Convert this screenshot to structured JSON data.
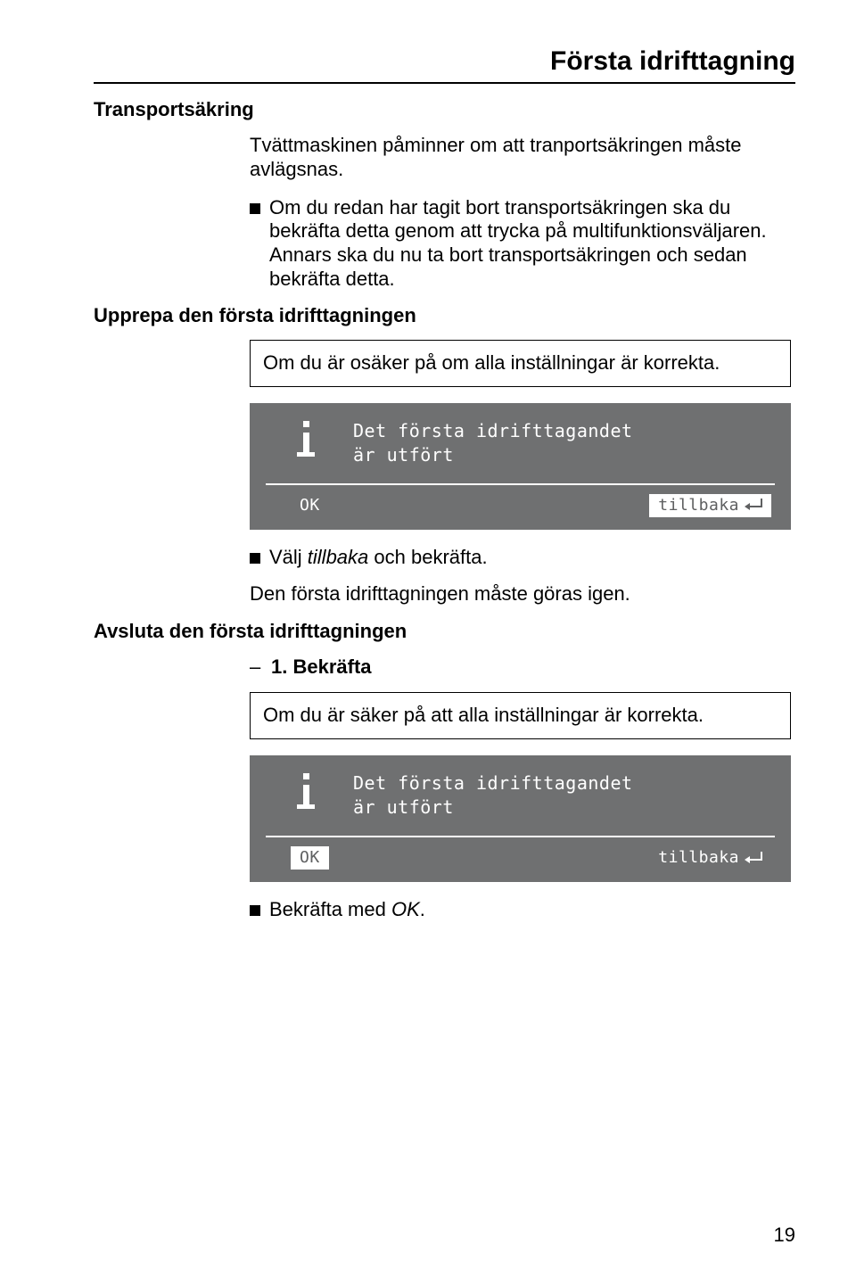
{
  "colors": {
    "lcd_bg": "#6f7071",
    "lcd_fg": "#ffffff",
    "lcd_sel_bg": "#ffffff",
    "lcd_sel_fg": "#5f6061",
    "rule": "#000000"
  },
  "page_title": "Första idrifttagning",
  "section1": {
    "heading": "Transportsäkring",
    "para1": "Tvättmaskinen påminner om att tranportsäkringen måste avlägsnas.",
    "bullet1": "Om du redan har tagit bort transportsäkringen ska du bekräfta detta genom att trycka på multifunktionsväljaren. Annars ska du nu ta bort transportsäkringen och sedan bekräfta detta."
  },
  "section2": {
    "heading": "Upprepa den första idrifttagningen",
    "note": "Om du är osäker på om alla inställningar är korrekta.",
    "lcd": {
      "msg_line1": "Det första idrifttagandet",
      "msg_line2": "är utfört",
      "ok_label": "OK",
      "back_label": "tillbaka",
      "selected": "back"
    },
    "bullet_prefix": "Välj ",
    "bullet_italic": "tillbaka",
    "bullet_suffix": " och bekräfta.",
    "para_after": "Den första idrifttagningen måste göras igen."
  },
  "section3": {
    "heading": "Avsluta den första idrifttagningen",
    "step_dash": "–",
    "step_label": "1. Bekräfta",
    "note": "Om du är säker på att alla inställningar är korrekta.",
    "lcd": {
      "msg_line1": "Det första idrifttagandet",
      "msg_line2": "är utfört",
      "ok_label": "OK",
      "back_label": "tillbaka",
      "selected": "ok"
    },
    "bullet_prefix": "Bekräfta med ",
    "bullet_italic": "OK",
    "bullet_suffix": "."
  },
  "page_number": "19"
}
